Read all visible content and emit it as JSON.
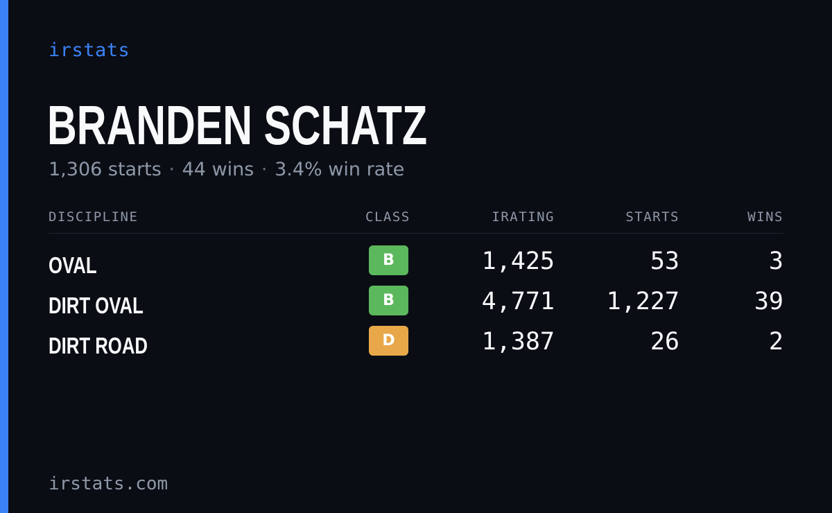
{
  "brand": "irstats",
  "driver": {
    "name": "BRANDEN SCHATZ",
    "starts_text": "1,306 starts",
    "wins_text": "44 wins",
    "win_rate_text": "3.4% win rate",
    "separator": "·"
  },
  "table": {
    "headers": {
      "discipline": "DISCIPLINE",
      "class": "CLASS",
      "irating": "IRATING",
      "starts": "STARTS",
      "wins": "WINS"
    },
    "rows": [
      {
        "discipline": "OVAL",
        "class": "B",
        "class_color": "#5cb85c",
        "irating": "1,425",
        "starts": "53",
        "wins": "3"
      },
      {
        "discipline": "DIRT OVAL",
        "class": "B",
        "class_color": "#5cb85c",
        "irating": "4,771",
        "starts": "1,227",
        "wins": "39"
      },
      {
        "discipline": "DIRT ROAD",
        "class": "D",
        "class_color": "#e8a84a",
        "irating": "1,387",
        "starts": "26",
        "wins": "2"
      }
    ]
  },
  "footer": "irstats.com",
  "colors": {
    "accent": "#3b82f6",
    "background": "#0a0d14",
    "text": "#f8f9fb",
    "muted": "#8f98a8"
  }
}
